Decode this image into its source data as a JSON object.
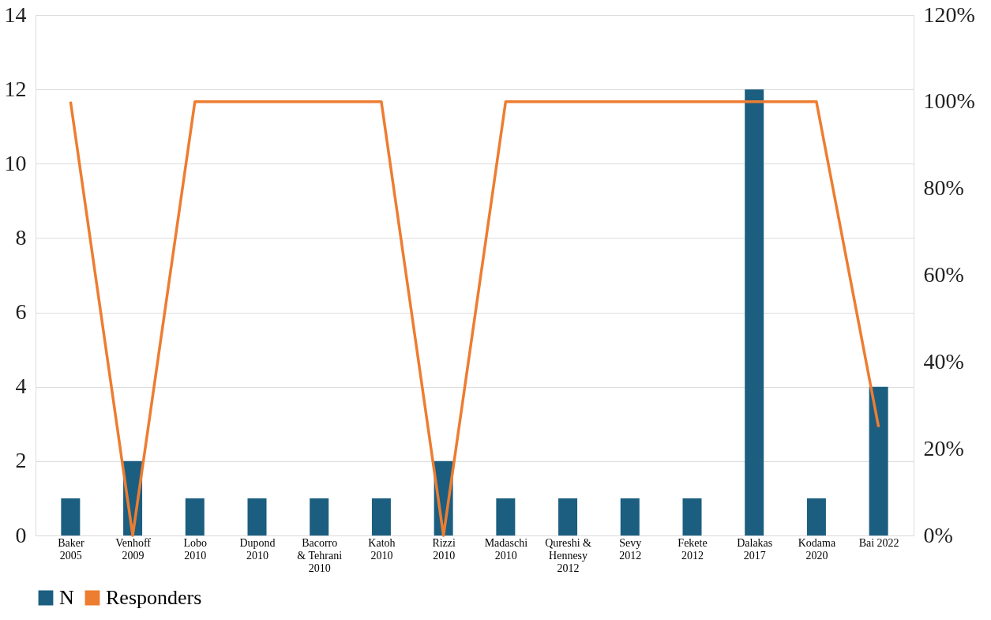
{
  "chart_data": {
    "type": "bar",
    "categories": [
      "Baker\n2005",
      "Venhoff\n2009",
      "Lobo\n2010",
      "Dupond\n2010",
      "Bacorro\n& Tehrani\n2010",
      "Katoh\n2010",
      "Rizzi\n2010",
      "Madaschi\n2010",
      "Qureshi &\nHennesy\n2012",
      "Sevy\n2012",
      "Fekete\n2012",
      "Dalakas\n2017",
      "Kodama\n2020",
      "Bai 2022"
    ],
    "series": [
      {
        "name": "N",
        "color": "#1b5e80",
        "values": [
          1,
          2,
          1,
          1,
          1,
          1,
          2,
          1,
          1,
          1,
          1,
          12,
          1,
          4
        ]
      },
      {
        "name": "Responders",
        "type": "line",
        "axis": "y2",
        "color": "#ed7d31",
        "values": [
          100,
          0,
          100,
          100,
          100,
          100,
          0,
          100,
          100,
          100,
          100,
          100,
          100,
          25
        ]
      }
    ],
    "ylim": [
      0,
      14
    ],
    "yticks": [
      0,
      2,
      4,
      6,
      8,
      10,
      12,
      14
    ],
    "y2lim": [
      0,
      120
    ],
    "y2ticks": [
      {
        "value": 0,
        "label": "0%"
      },
      {
        "value": 20,
        "label": "20%"
      },
      {
        "value": 40,
        "label": "40%"
      },
      {
        "value": 60,
        "label": "60%"
      },
      {
        "value": 80,
        "label": "80%"
      },
      {
        "value": 100,
        "label": "100%"
      },
      {
        "value": 120,
        "label": "120%"
      }
    ],
    "grid": "y",
    "legend": "bottom",
    "marker": "none",
    "line_style": "solid"
  }
}
